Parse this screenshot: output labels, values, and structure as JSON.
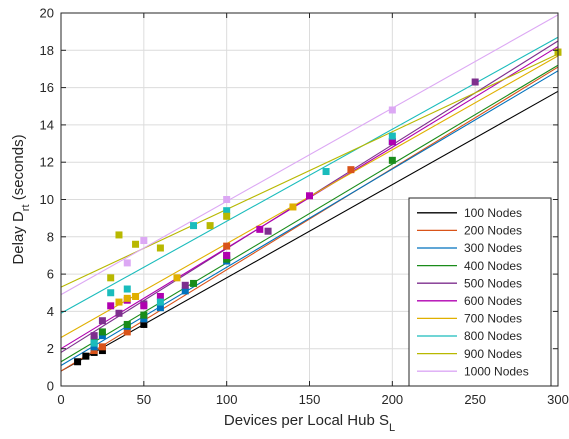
{
  "chart_data": {
    "type": "scatter",
    "title": "",
    "xlabel": "Devices per Local Hub S",
    "xlabel_subscript": "L",
    "ylabel": "Delay D",
    "ylabel_subscript": "rt",
    "ylabel_suffix": " (seconds)",
    "xlim": [
      0,
      300
    ],
    "ylim": [
      0,
      20
    ],
    "xticks": [
      0,
      50,
      100,
      150,
      200,
      250,
      300
    ],
    "yticks": [
      0,
      2,
      4,
      6,
      8,
      10,
      12,
      14,
      16,
      18,
      20
    ],
    "grid": true,
    "legend_position": "bottom-right",
    "series": [
      {
        "name": "100 Nodes",
        "color": "#000000",
        "fit": [
          0,
          300,
          0.8,
          15.8
        ],
        "points": [
          [
            10,
            1.3
          ],
          [
            15,
            1.6
          ],
          [
            20,
            1.8
          ],
          [
            25,
            1.9
          ],
          [
            50,
            3.3
          ]
        ]
      },
      {
        "name": "200 Nodes",
        "color": "#D95319",
        "fit": [
          0,
          300,
          0.8,
          17.1
        ],
        "points": [
          [
            20,
            1.9
          ],
          [
            25,
            2.1
          ],
          [
            40,
            2.9
          ],
          [
            50,
            3.6
          ],
          [
            100,
            7.5
          ],
          [
            175,
            11.6
          ],
          [
            300,
            17.9
          ]
        ]
      },
      {
        "name": "300 Nodes",
        "color": "#0072BD",
        "fit": [
          0,
          300,
          1.1,
          16.9
        ],
        "points": [
          [
            20,
            2.1
          ],
          [
            25,
            2.7
          ],
          [
            40,
            3.2
          ],
          [
            50,
            3.6
          ],
          [
            60,
            4.2
          ],
          [
            75,
            5.1
          ],
          [
            100,
            6.7
          ],
          [
            200,
            13.1
          ]
        ]
      },
      {
        "name": "400 Nodes",
        "color": "#1A8C1A",
        "fit": [
          0,
          300,
          1.3,
          17.2
        ],
        "points": [
          [
            20,
            2.5
          ],
          [
            25,
            2.9
          ],
          [
            40,
            3.3
          ],
          [
            50,
            3.8
          ],
          [
            80,
            5.5
          ],
          [
            100,
            6.8
          ],
          [
            200,
            12.1
          ]
        ]
      },
      {
        "name": "500 Nodes",
        "color": "#7E2F8E",
        "fit": [
          0,
          300,
          1.8,
          18.5
        ],
        "points": [
          [
            20,
            2.7
          ],
          [
            25,
            3.5
          ],
          [
            35,
            3.9
          ],
          [
            50,
            4.4
          ],
          [
            75,
            5.4
          ],
          [
            100,
            7.0
          ],
          [
            125,
            8.3
          ],
          [
            250,
            16.3
          ]
        ]
      },
      {
        "name": "600 Nodes",
        "color": "#B000B0",
        "fit": [
          0,
          300,
          2.0,
          18.2
        ],
        "points": [
          [
            30,
            4.3
          ],
          [
            40,
            4.6
          ],
          [
            50,
            4.3
          ],
          [
            60,
            4.8
          ],
          [
            100,
            7.0
          ],
          [
            120,
            8.4
          ],
          [
            150,
            10.2
          ],
          [
            200,
            13.1
          ]
        ]
      },
      {
        "name": "700 Nodes",
        "color": "#E0B000",
        "fit": [
          0,
          300,
          2.6,
          17.7
        ],
        "points": [
          [
            35,
            4.5
          ],
          [
            40,
            4.7
          ],
          [
            45,
            4.8
          ],
          [
            70,
            5.8
          ],
          [
            140,
            9.6
          ]
        ]
      },
      {
        "name": "800 Nodes",
        "color": "#1ABCBC",
        "fit": [
          0,
          300,
          3.9,
          18.7
        ],
        "points": [
          [
            20,
            2.3
          ],
          [
            30,
            5.0
          ],
          [
            40,
            5.2
          ],
          [
            60,
            4.5
          ],
          [
            80,
            8.6
          ],
          [
            100,
            9.4
          ],
          [
            160,
            11.5
          ],
          [
            200,
            13.4
          ]
        ]
      },
      {
        "name": "900 Nodes",
        "color": "#B8B800",
        "fit": [
          0,
          300,
          5.3,
          17.8
        ],
        "points": [
          [
            30,
            5.8
          ],
          [
            35,
            8.1
          ],
          [
            45,
            7.6
          ],
          [
            60,
            7.4
          ],
          [
            90,
            8.6
          ],
          [
            100,
            9.1
          ],
          [
            300,
            17.9
          ]
        ]
      },
      {
        "name": "1000 Nodes",
        "color": "#DCA8F4",
        "fit": [
          0,
          300,
          4.9,
          19.9
        ],
        "points": [
          [
            40,
            6.6
          ],
          [
            50,
            7.8
          ],
          [
            100,
            10.0
          ],
          [
            200,
            14.8
          ]
        ]
      }
    ]
  }
}
